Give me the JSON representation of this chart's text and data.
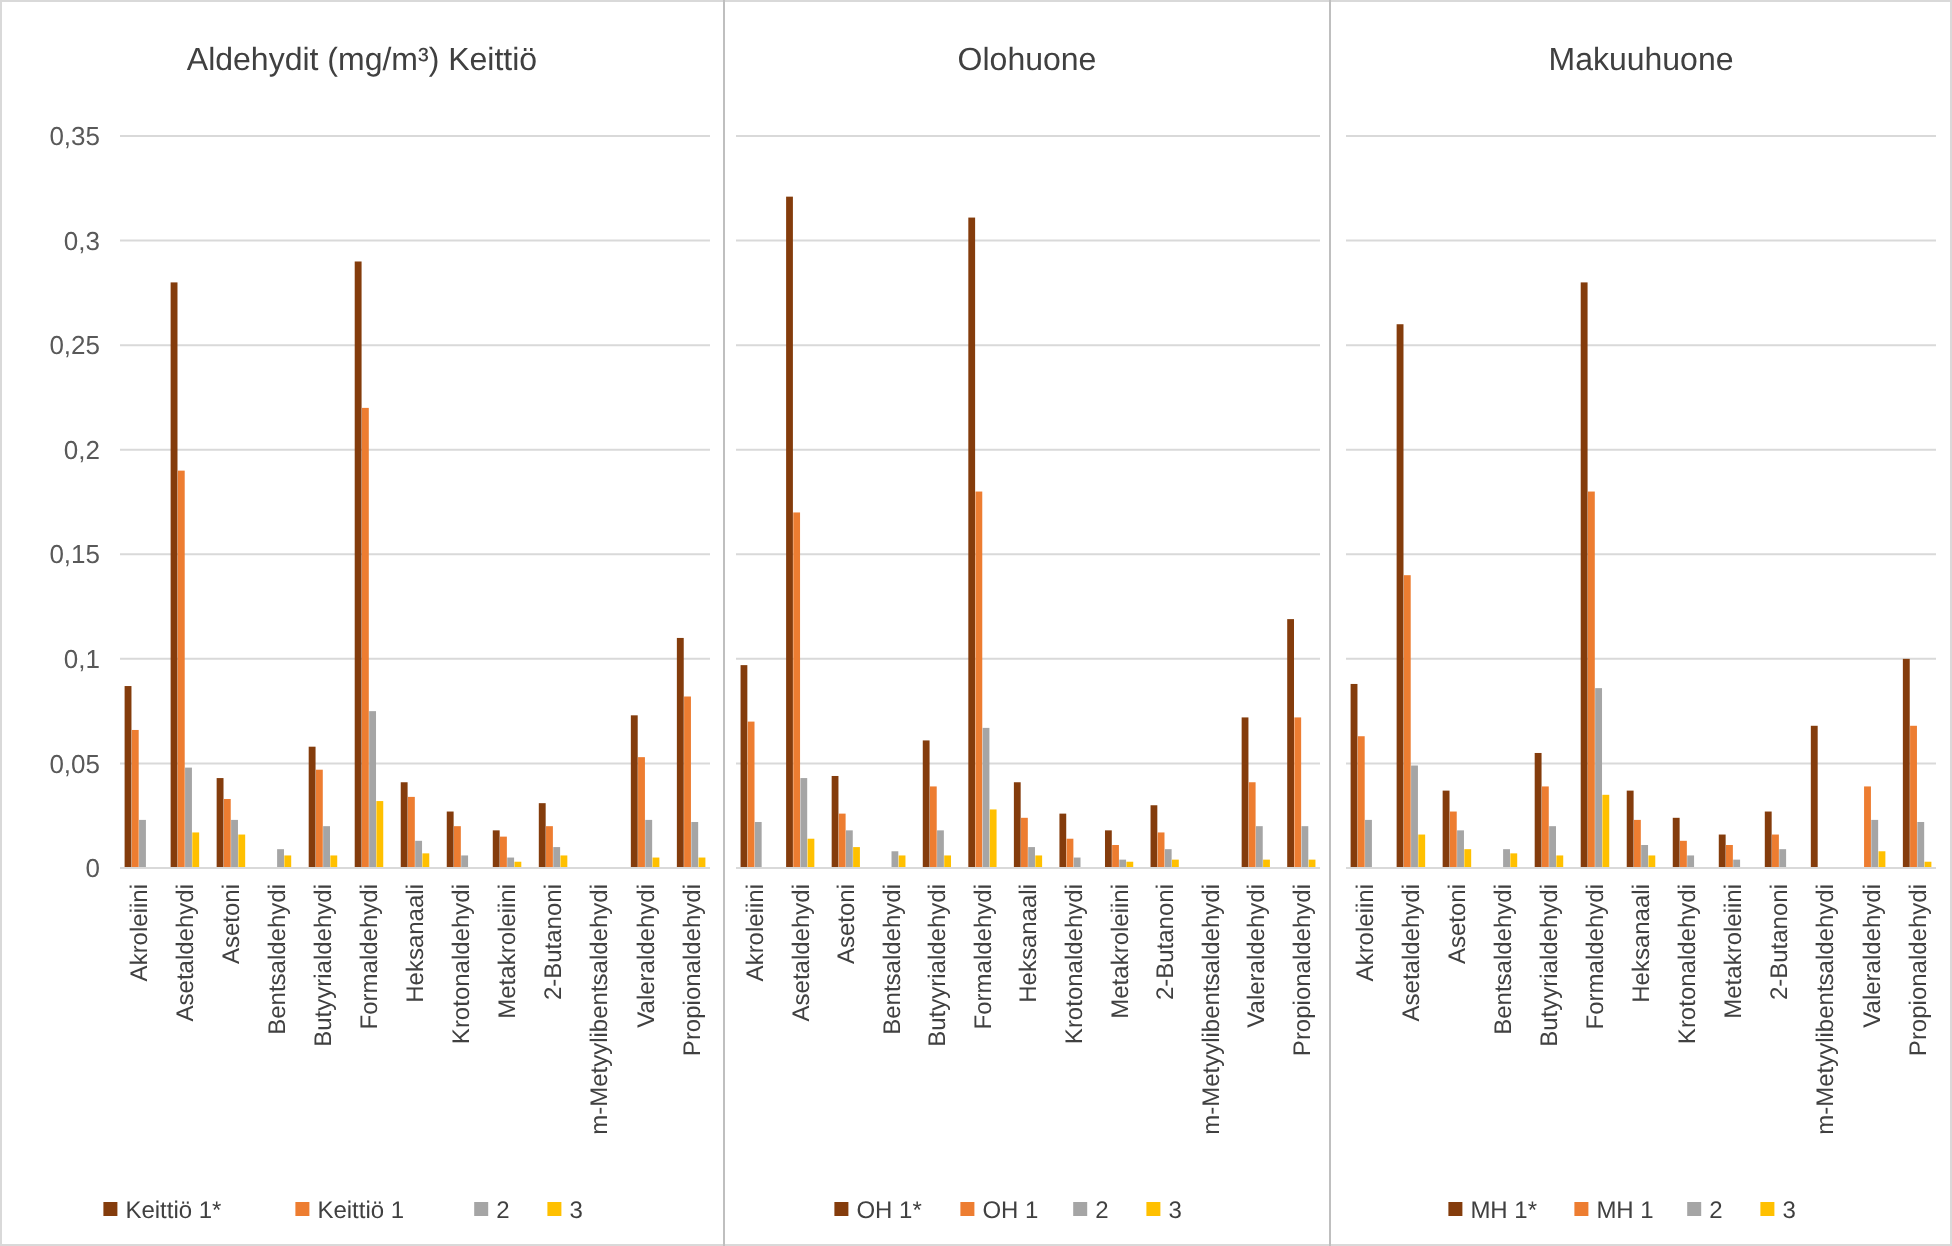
{
  "chart_data": [
    {
      "type": "bar",
      "title": "Aldehydit (mg/m³) Keittiö",
      "categories": [
        "Akroleiini",
        "Asetaldehydi",
        "Asetoni",
        "Bentsaldehydi",
        "Butyyrialdehydi",
        "Formaldehydi",
        "Heksanaali",
        "Krotonaldehydi",
        "Metakroleiini",
        "2-Butanoni",
        "m-Metyylibentsaldehydi",
        "Valeraldehydi",
        "Propionaldehydi"
      ],
      "ylim": [
        0,
        0.35
      ],
      "yticks": [
        {
          "value": 0,
          "label": "0"
        },
        {
          "value": 0.05,
          "label": "0,05"
        },
        {
          "value": 0.1,
          "label": "0,1"
        },
        {
          "value": 0.15,
          "label": "0,15"
        },
        {
          "value": 0.2,
          "label": "0,2"
        },
        {
          "value": 0.25,
          "label": "0,25"
        },
        {
          "value": 0.3,
          "label": "0,3"
        },
        {
          "value": 0.35,
          "label": "0,35"
        }
      ],
      "grid": "y",
      "legend": "bottom",
      "series": [
        {
          "name": "Keittiö 1*",
          "color": "#843c0c",
          "values": [
            0.087,
            0.28,
            0.043,
            null,
            0.058,
            0.29,
            0.041,
            0.027,
            0.018,
            0.031,
            null,
            0.073,
            0.11
          ]
        },
        {
          "name": "Keittiö 1",
          "color": "#ed7d31",
          "values": [
            0.066,
            0.19,
            0.033,
            null,
            0.047,
            0.22,
            0.034,
            0.02,
            0.015,
            0.02,
            null,
            0.053,
            0.082
          ]
        },
        {
          "name": "2",
          "color": "#a5a5a5",
          "values": [
            0.023,
            0.048,
            0.023,
            0.009,
            0.02,
            0.075,
            0.013,
            0.006,
            0.005,
            0.01,
            null,
            0.023,
            0.022
          ]
        },
        {
          "name": "3",
          "color": "#ffc000",
          "values": [
            null,
            0.017,
            0.016,
            0.006,
            0.006,
            0.032,
            0.007,
            null,
            0.003,
            0.006,
            null,
            0.005,
            0.005
          ]
        }
      ]
    },
    {
      "type": "bar",
      "title": "Olohuone",
      "categories": [
        "Akroleiini",
        "Asetaldehydi",
        "Asetoni",
        "Bentsaldehydi",
        "Butyyrialdehydi",
        "Formaldehydi",
        "Heksanaali",
        "Krotonaldehydi",
        "Metakroleiini",
        "2-Butanoni",
        "m-Metyylibentsaldehydi",
        "Valeraldehydi",
        "Propionaldehydi"
      ],
      "ylim": [
        0,
        0.35
      ],
      "yticks": [
        {
          "value": 0,
          "label": null
        },
        {
          "value": 0.05,
          "label": null
        },
        {
          "value": 0.1,
          "label": null
        },
        {
          "value": 0.15,
          "label": null
        },
        {
          "value": 0.2,
          "label": null
        },
        {
          "value": 0.25,
          "label": null
        },
        {
          "value": 0.3,
          "label": null
        },
        {
          "value": 0.35,
          "label": null
        }
      ],
      "grid": "y",
      "legend": "bottom",
      "tick_labels": "x",
      "series": [
        {
          "name": "OH 1*",
          "color": "#843c0c",
          "values": [
            0.097,
            0.321,
            0.044,
            null,
            0.061,
            0.311,
            0.041,
            0.026,
            0.018,
            0.03,
            null,
            0.072,
            0.119
          ]
        },
        {
          "name": "OH 1",
          "color": "#ed7d31",
          "values": [
            0.07,
            0.17,
            0.026,
            null,
            0.039,
            0.18,
            0.024,
            0.014,
            0.011,
            0.017,
            null,
            0.041,
            0.072
          ]
        },
        {
          "name": "2",
          "color": "#a5a5a5",
          "values": [
            0.022,
            0.043,
            0.018,
            0.008,
            0.018,
            0.067,
            0.01,
            0.005,
            0.004,
            0.009,
            null,
            0.02,
            0.02
          ]
        },
        {
          "name": "3",
          "color": "#ffc000",
          "values": [
            null,
            0.014,
            0.01,
            0.006,
            0.006,
            0.028,
            0.006,
            null,
            0.003,
            0.004,
            null,
            0.004,
            0.004
          ]
        }
      ]
    },
    {
      "type": "bar",
      "title": "Makuuhuone",
      "categories": [
        "Akroleiini",
        "Asetaldehydi",
        "Asetoni",
        "Bentsaldehydi",
        "Butyyrialdehydi",
        "Formaldehydi",
        "Heksanaali",
        "Krotonaldehydi",
        "Metakroleiini",
        "2-Butanoni",
        "m-Metyylibentsaldehydi",
        "Valeraldehydi",
        "Propionaldehydi"
      ],
      "ylim": [
        0,
        0.35
      ],
      "yticks": [
        {
          "value": 0,
          "label": null
        },
        {
          "value": 0.05,
          "label": null
        },
        {
          "value": 0.1,
          "label": null
        },
        {
          "value": 0.15,
          "label": null
        },
        {
          "value": 0.2,
          "label": null
        },
        {
          "value": 0.25,
          "label": null
        },
        {
          "value": 0.3,
          "label": null
        },
        {
          "value": 0.35,
          "label": null
        }
      ],
      "grid": "y",
      "legend": "bottom",
      "tick_labels": "x",
      "series": [
        {
          "name": "MH 1*",
          "color": "#843c0c",
          "values": [
            0.088,
            0.26,
            0.037,
            null,
            0.055,
            0.28,
            0.037,
            0.024,
            0.016,
            0.027,
            0.068,
            null,
            0.1
          ]
        },
        {
          "name": "MH 1",
          "color": "#ed7d31",
          "values": [
            0.063,
            0.14,
            0.027,
            null,
            0.039,
            0.18,
            0.023,
            0.013,
            0.011,
            0.016,
            null,
            0.039,
            0.068
          ]
        },
        {
          "name": "2",
          "color": "#a5a5a5",
          "values": [
            0.023,
            0.049,
            0.018,
            0.009,
            0.02,
            0.086,
            0.011,
            0.006,
            0.004,
            0.009,
            null,
            0.023,
            0.022
          ]
        },
        {
          "name": "3",
          "color": "#ffc000",
          "values": [
            null,
            0.016,
            0.009,
            0.007,
            0.006,
            0.035,
            0.006,
            null,
            null,
            null,
            null,
            0.008,
            0.003
          ]
        }
      ]
    }
  ]
}
